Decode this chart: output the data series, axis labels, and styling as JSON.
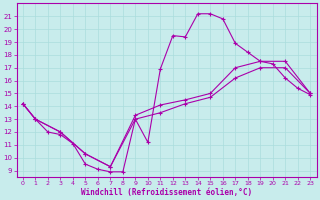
{
  "xlabel": "Windchill (Refroidissement éolien,°C)",
  "bg_color": "#c8ecec",
  "line_color": "#aa00aa",
  "grid_color": "#aadddd",
  "xlim": [
    -0.5,
    23.5
  ],
  "ylim": [
    8.5,
    22.0
  ],
  "xticks": [
    0,
    1,
    2,
    3,
    4,
    5,
    6,
    7,
    8,
    9,
    10,
    11,
    12,
    13,
    14,
    15,
    16,
    17,
    18,
    19,
    20,
    21,
    22,
    23
  ],
  "yticks": [
    9,
    10,
    11,
    12,
    13,
    14,
    15,
    16,
    17,
    18,
    19,
    20,
    21
  ],
  "line1_x": [
    0,
    1,
    2,
    3,
    4,
    5,
    6,
    7,
    8,
    9,
    10,
    11,
    12,
    13,
    14,
    15,
    16,
    17,
    18,
    19,
    20,
    21,
    22,
    23
  ],
  "line1_y": [
    14.2,
    13.0,
    12.0,
    11.8,
    11.1,
    9.5,
    9.1,
    8.9,
    8.9,
    13.0,
    11.2,
    16.9,
    19.5,
    19.4,
    21.2,
    21.2,
    20.8,
    18.9,
    18.2,
    17.5,
    17.3,
    16.2,
    15.4,
    14.9
  ],
  "line2_x": [
    0,
    1,
    3,
    5,
    7,
    9,
    11,
    13,
    15,
    17,
    19,
    21,
    23
  ],
  "line2_y": [
    14.2,
    13.0,
    12.0,
    10.3,
    9.3,
    13.3,
    14.1,
    14.5,
    15.0,
    17.0,
    17.5,
    17.5,
    15.0
  ],
  "line3_x": [
    0,
    1,
    3,
    5,
    7,
    9,
    11,
    13,
    15,
    17,
    19,
    21,
    23
  ],
  "line3_y": [
    14.2,
    13.0,
    12.0,
    10.3,
    9.3,
    13.0,
    13.5,
    14.2,
    14.7,
    16.2,
    17.0,
    17.0,
    15.0
  ]
}
